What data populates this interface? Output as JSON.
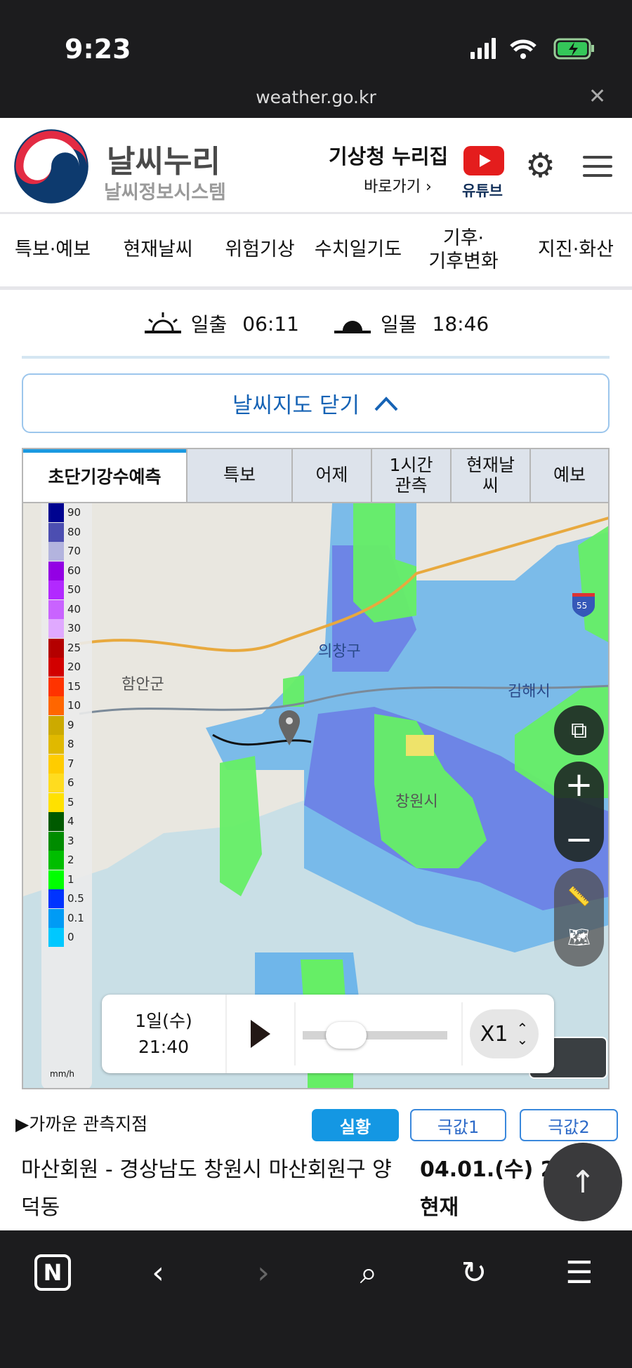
{
  "status_bar": {
    "time": "9:23",
    "url": "weather.go.kr"
  },
  "header": {
    "brand": "날씨누리",
    "brand_sub": "날씨정보시스템",
    "nurijip": "기상청 누리집",
    "shortcut": "바로가기 ›",
    "youtube": "유튜브"
  },
  "nav": [
    "특보·예보",
    "현재날씨",
    "위험기상",
    "수치일기도",
    "기후·\n기후변화",
    "지진·화산"
  ],
  "sun": {
    "sunrise_label": "일출",
    "sunrise": "06:11",
    "sunset_label": "일몰",
    "sunset": "18:46"
  },
  "map_toggle": "날씨지도 닫기",
  "tabs": [
    "초단기강수예측",
    "특보",
    "어제",
    "1시간\n관측",
    "현재날\n씨",
    "예보"
  ],
  "legend": {
    "unit": "mm/h",
    "items": [
      {
        "label": "90",
        "color": "#000390"
      },
      {
        "label": "80",
        "color": "#4c4eb1"
      },
      {
        "label": "70",
        "color": "#b3b4de"
      },
      {
        "label": "60",
        "color": "#9300e4"
      },
      {
        "label": "50",
        "color": "#b229ff"
      },
      {
        "label": "40",
        "color": "#c963ff"
      },
      {
        "label": "30",
        "color": "#e0a9ff"
      },
      {
        "label": "25",
        "color": "#b40000"
      },
      {
        "label": "20",
        "color": "#d20000"
      },
      {
        "label": "15",
        "color": "#ff3300"
      },
      {
        "label": "10",
        "color": "#ff6600"
      },
      {
        "label": "9",
        "color": "#ccaa00"
      },
      {
        "label": "8",
        "color": "#e0b900"
      },
      {
        "label": "7",
        "color": "#ffcc00"
      },
      {
        "label": "6",
        "color": "#ffdc1f"
      },
      {
        "label": "5",
        "color": "#ffe100"
      },
      {
        "label": "4",
        "color": "#005a00"
      },
      {
        "label": "3",
        "color": "#008c00"
      },
      {
        "label": "2",
        "color": "#00be00"
      },
      {
        "label": "1",
        "color": "#00ff00"
      },
      {
        "label": "0.5",
        "color": "#0033ff"
      },
      {
        "label": "0.1",
        "color": "#009bf5"
      },
      {
        "label": "0",
        "color": "#00c8ff"
      }
    ]
  },
  "map_labels": {
    "uichang": "의창구",
    "haman": "함안군",
    "gimhae": "김해시",
    "changwon": "창원시",
    "highway": "55"
  },
  "player": {
    "date": "1일(수)",
    "time": "21:40",
    "speed": "X1",
    "progress": 0.22
  },
  "obs": {
    "title": "▶가까운 관측지점",
    "buttons": [
      "실황",
      "극값1",
      "극값2"
    ],
    "active": 0,
    "station": "마산회원 - 경상남도 창원시 마산회원구 양덕동",
    "time": "04.01.(수) 21:",
    "time2": "현재"
  }
}
